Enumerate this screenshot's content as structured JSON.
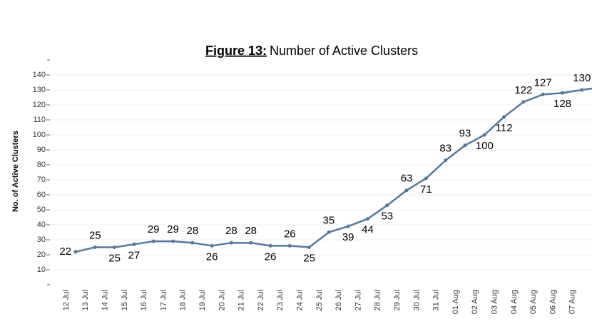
{
  "chart_data": {
    "type": "line",
    "title_label": "Figure 13:",
    "title": "Number of Active Clusters",
    "y_label": "No. of Active Clusters",
    "categories": [
      "12 Jul",
      "13 Jul",
      "14 Jul",
      "15 Jul",
      "16 Jul",
      "17 Jul",
      "18 Jul",
      "19 Jul",
      "20 Jul",
      "21 Jul",
      "22 Jul",
      "23 Jul",
      "24 Jul",
      "25 Jul",
      "26 Jul",
      "27 Jul",
      "28 Jul",
      "29 Jul",
      "30 Jul",
      "31 Jul",
      "01 Aug",
      "02 Aug",
      "03 Aug",
      "04 Aug",
      "05 Aug",
      "06 Aug",
      "07 Aug"
    ],
    "values": [
      22,
      25,
      25,
      27,
      29,
      29,
      28,
      26,
      28,
      28,
      26,
      26,
      25,
      35,
      39,
      44,
      53,
      63,
      71,
      83,
      93,
      100,
      112,
      122,
      127,
      128,
      130
    ],
    "color": "#55789e",
    "ylim": [
      0,
      150
    ],
    "yticks": [
      10,
      20,
      30,
      40,
      50,
      60,
      70,
      80,
      90,
      100,
      110,
      120,
      130,
      140
    ],
    "grid": true
  }
}
